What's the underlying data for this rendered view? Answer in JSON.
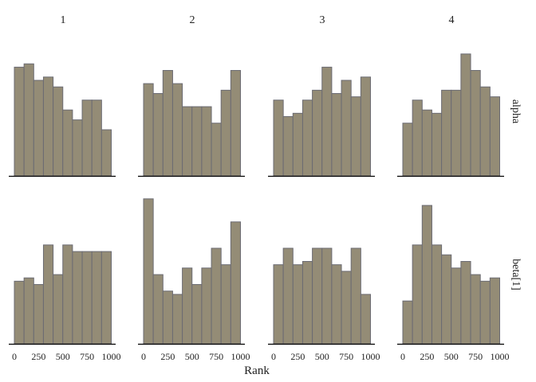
{
  "chart_data": {
    "type": "bar",
    "subtype": "rank-histogram-facets",
    "xlabel": "Rank",
    "ylabel": "",
    "xlim": [
      0,
      1000
    ],
    "x_ticks": [
      "0",
      "250",
      "500",
      "750",
      "1000"
    ],
    "bins": 10,
    "bin_width": 100,
    "columns": [
      "1",
      "2",
      "3",
      "4"
    ],
    "rows": [
      "alpha",
      "beta[1]"
    ],
    "grid": false,
    "colors": {
      "bar_fill": "#948c76",
      "bar_stroke": "#6b6b73",
      "axis": "#000000"
    },
    "panels": [
      {
        "row": "alpha",
        "column": "1",
        "values": [
          33,
          34,
          29,
          30,
          27,
          20,
          17,
          23,
          23,
          14
        ]
      },
      {
        "row": "alpha",
        "column": "2",
        "values": [
          28,
          25,
          32,
          28,
          21,
          21,
          21,
          16,
          26,
          32
        ]
      },
      {
        "row": "alpha",
        "column": "3",
        "values": [
          23,
          18,
          19,
          23,
          26,
          33,
          25,
          29,
          24,
          30
        ]
      },
      {
        "row": "alpha",
        "column": "4",
        "values": [
          16,
          23,
          20,
          19,
          26,
          26,
          37,
          32,
          27,
          24
        ]
      },
      {
        "row": "beta[1]",
        "column": "1",
        "values": [
          19,
          20,
          18,
          30,
          21,
          30,
          28,
          28,
          28,
          28
        ]
      },
      {
        "row": "beta[1]",
        "column": "2",
        "values": [
          44,
          21,
          16,
          15,
          23,
          18,
          23,
          29,
          24,
          37
        ]
      },
      {
        "row": "beta[1]",
        "column": "3",
        "values": [
          24,
          29,
          24,
          25,
          29,
          29,
          24,
          22,
          29,
          15
        ]
      },
      {
        "row": "beta[1]",
        "column": "4",
        "values": [
          13,
          30,
          42,
          30,
          27,
          23,
          25,
          21,
          19,
          20
        ]
      }
    ]
  }
}
